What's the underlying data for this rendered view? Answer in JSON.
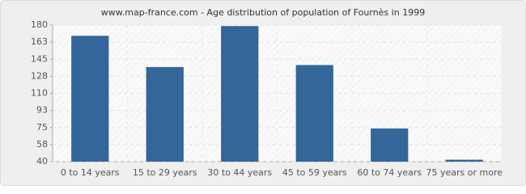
{
  "chart_data": {
    "type": "bar",
    "title": "www.map-france.com - Age distribution of population of Fournès in 1999",
    "categories": [
      "0 to 14 years",
      "15 to 29 years",
      "30 to 44 years",
      "45 to 59 years",
      "60 to 74 years",
      "75 years or more"
    ],
    "values": [
      169,
      137,
      179,
      139,
      74,
      42
    ],
    "color": "#336699",
    "ylim": [
      40,
      180
    ],
    "yticks": [
      40,
      {
        "value": 57.5,
        "label": "58"
      },
      75,
      {
        "value": 92.5,
        "label": "93"
      },
      110,
      {
        "value": 127.5,
        "label": "128"
      },
      145,
      {
        "value": 162.5,
        "label": "163"
      },
      180
    ],
    "grid": true
  }
}
